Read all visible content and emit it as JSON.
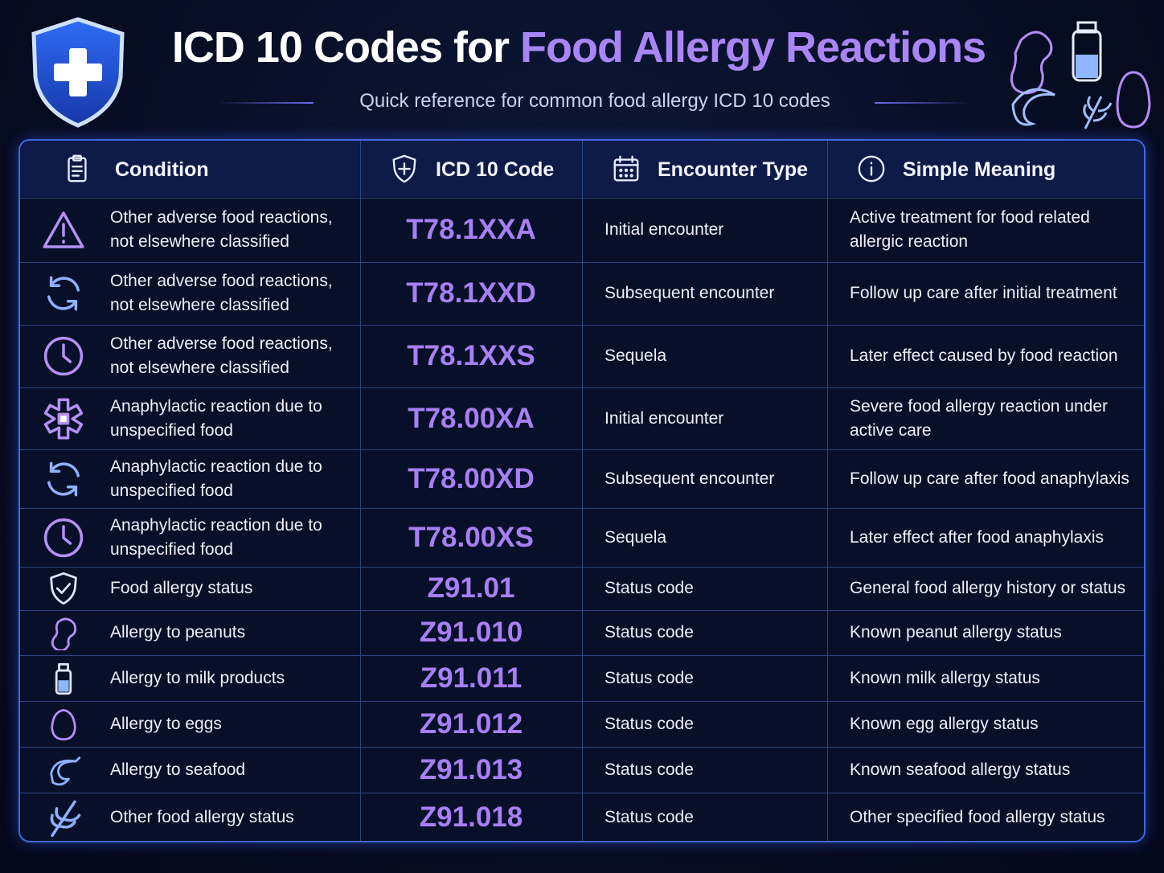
{
  "header": {
    "title_main": "ICD 10 Codes for",
    "title_accent": "Food Allergy Reactions",
    "subtitle": "Quick reference for common food allergy ICD 10 codes"
  },
  "table": {
    "headers": [
      "Condition",
      "ICD 10 Code",
      "Encounter Type",
      "Simple Meaning"
    ],
    "rows": [
      [
        "Other adverse food reactions, not elsewhere classified",
        "T78.1XXA",
        "Initial encounter",
        "Active treatment for food related allergic reaction"
      ],
      [
        "Other adverse food reactions, not elsewhere classified",
        "T78.1XXD",
        "Subsequent encounter",
        "Follow up care after initial treatment"
      ],
      [
        "Other adverse food reactions, not elsewhere classified",
        "T78.1XXS",
        "Sequela",
        "Later effect caused by food reaction"
      ],
      [
        "Anaphylactic reaction due to unspecified food",
        "T78.00XA",
        "Initial encounter",
        "Severe food allergy reaction under active care"
      ],
      [
        "Anaphylactic reaction due to unspecified food",
        "T78.00XD",
        "Subsequent encounter",
        "Follow up care after food anaphylaxis"
      ],
      [
        "Anaphylactic reaction due to unspecified food",
        "T78.00XS",
        "Sequela",
        "Later effect after food anaphylaxis"
      ],
      [
        "Food allergy status",
        "Z91.01",
        "Status code",
        "General food allergy history or status"
      ],
      [
        "Allergy to peanuts",
        "Z91.010",
        "Status code",
        "Known peanut allergy status"
      ],
      [
        "Allergy to milk products",
        "Z91.011",
        "Status code",
        "Known milk allergy status"
      ],
      [
        "Allergy to eggs",
        "Z91.012",
        "Status code",
        "Known egg allergy status"
      ],
      [
        "Allergy to seafood",
        "Z91.013",
        "Status code",
        "Known seafood allergy status"
      ],
      [
        "Other food allergy status",
        "Z91.018",
        "Status code",
        "Other specified food allergy status"
      ]
    ]
  }
}
